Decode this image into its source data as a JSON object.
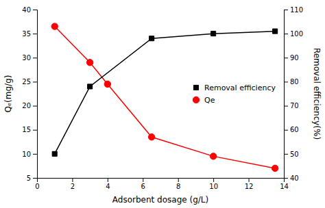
{
  "chart_data": {
    "type": "line",
    "x_label": "Adsorbent dosage (g/L)",
    "y_label": "Qₑ(mg/g)",
    "y2_label": "Removal efficiency(%)",
    "xlim": [
      0,
      14
    ],
    "xticks": [
      0,
      2,
      4,
      6,
      8,
      10,
      12,
      14
    ],
    "ylim": [
      5,
      40
    ],
    "yticks": [
      5,
      10,
      15,
      20,
      25,
      30,
      35,
      40
    ],
    "y2lim": [
      40,
      110
    ],
    "y2ticks": [
      40,
      50,
      60,
      70,
      80,
      90,
      100,
      110
    ],
    "legend": "right",
    "series": [
      {
        "name": "Qe",
        "color": "red",
        "marker": "circle",
        "x": [
          1,
          3,
          4,
          6.5,
          10,
          13.5
        ],
        "values": [
          36.5,
          29,
          24.5,
          13.5,
          9.5,
          7
        ]
      },
      {
        "name": "Removal efficiency",
        "color": "black",
        "marker": "square",
        "axis": "y2",
        "x": [
          1,
          3,
          6.5,
          10,
          13.5
        ],
        "values": [
          50,
          78,
          98,
          100,
          101
        ]
      }
    ]
  }
}
